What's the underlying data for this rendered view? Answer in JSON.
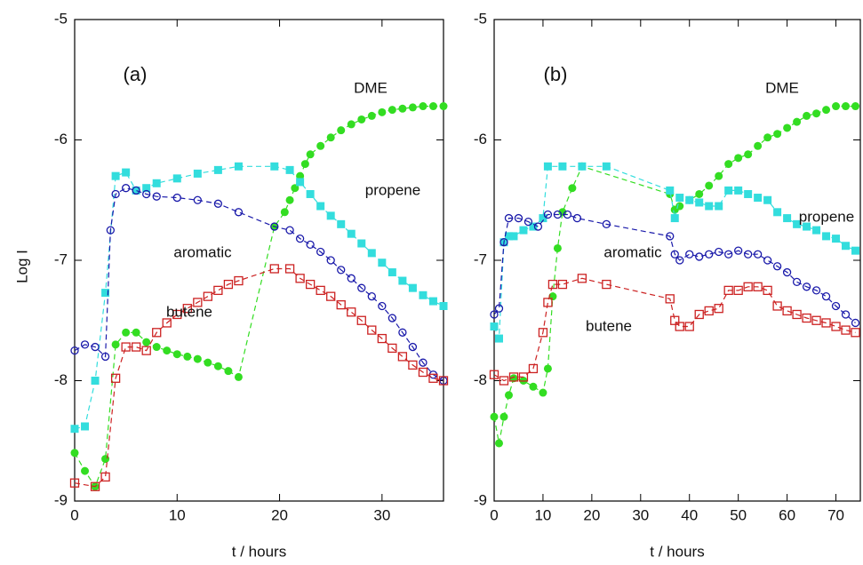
{
  "chart_data": [
    {
      "type": "scatter",
      "ylabel": "Log I",
      "xlabel": "t / hours",
      "annotations": [
        "(a)",
        "DME",
        "propene",
        "aromatic",
        "butene"
      ],
      "xlim": [
        0,
        36
      ],
      "xticks": [
        0,
        10,
        20,
        30
      ],
      "ylim": [
        -9,
        -5
      ],
      "yticks": [
        -9,
        -8,
        -7,
        -6,
        -5
      ],
      "line_style": "dashed",
      "series": [
        {
          "name": "DME",
          "color": "#33dd22",
          "marker": "circle",
          "filled": true,
          "x": [
            0,
            1,
            2,
            3,
            4,
            5,
            6,
            7,
            8,
            9,
            10,
            11,
            12,
            13,
            14,
            15,
            16,
            19.5,
            20.5,
            21,
            21.5,
            22,
            22.5,
            23,
            24,
            25,
            26,
            27,
            28,
            29,
            30,
            31,
            32,
            33,
            34,
            35,
            36
          ],
          "values": [
            -8.6,
            -8.75,
            -8.88,
            -8.65,
            -7.7,
            -7.6,
            -7.6,
            -7.68,
            -7.72,
            -7.75,
            -7.78,
            -7.8,
            -7.82,
            -7.85,
            -7.88,
            -7.92,
            -7.97,
            -6.72,
            -6.6,
            -6.5,
            -6.4,
            -6.3,
            -6.2,
            -6.12,
            -6.05,
            -5.98,
            -5.92,
            -5.87,
            -5.83,
            -5.8,
            -5.77,
            -5.75,
            -5.74,
            -5.73,
            -5.72,
            -5.72,
            -5.72
          ]
        },
        {
          "name": "propene",
          "color": "#33dddd",
          "marker": "square",
          "filled": true,
          "x": [
            0,
            1,
            2,
            3,
            4,
            5,
            6,
            7,
            8,
            10,
            12,
            14,
            16,
            19.5,
            21,
            22,
            23,
            24,
            25,
            26,
            27,
            28,
            29,
            30,
            31,
            32,
            33,
            34,
            35,
            36
          ],
          "values": [
            -8.4,
            -8.38,
            -8.0,
            -7.27,
            -6.3,
            -6.27,
            -6.42,
            -6.4,
            -6.36,
            -6.32,
            -6.28,
            -6.25,
            -6.22,
            -6.22,
            -6.25,
            -6.35,
            -6.45,
            -6.55,
            -6.63,
            -6.7,
            -6.78,
            -6.86,
            -6.94,
            -7.02,
            -7.1,
            -7.17,
            -7.23,
            -7.29,
            -7.34,
            -7.38
          ]
        },
        {
          "name": "aromatic",
          "color": "#1a1aaa",
          "marker": "circle",
          "filled": false,
          "x": [
            0,
            1,
            2,
            3,
            3.5,
            4,
            5,
            6,
            7,
            8,
            10,
            12,
            14,
            16,
            19.5,
            21,
            22,
            23,
            24,
            25,
            26,
            27,
            28,
            29,
            30,
            31,
            32,
            33,
            34,
            35,
            36
          ],
          "values": [
            -7.75,
            -7.7,
            -7.72,
            -7.8,
            -6.75,
            -6.45,
            -6.4,
            -6.42,
            -6.45,
            -6.47,
            -6.48,
            -6.5,
            -6.53,
            -6.6,
            -6.72,
            -6.75,
            -6.82,
            -6.87,
            -6.93,
            -7.0,
            -7.08,
            -7.15,
            -7.23,
            -7.3,
            -7.38,
            -7.48,
            -7.6,
            -7.72,
            -7.85,
            -7.95,
            -8.0
          ]
        },
        {
          "name": "butene",
          "color": "#cc2222",
          "marker": "square",
          "filled": false,
          "x": [
            0,
            2,
            3,
            4,
            5,
            6,
            7,
            8,
            9,
            10,
            11,
            12,
            13,
            14,
            15,
            16,
            19.5,
            21,
            22,
            23,
            24,
            25,
            26,
            27,
            28,
            29,
            30,
            31,
            32,
            33,
            34,
            35,
            36
          ],
          "values": [
            -8.85,
            -8.88,
            -8.8,
            -7.98,
            -7.72,
            -7.72,
            -7.75,
            -7.6,
            -7.52,
            -7.45,
            -7.4,
            -7.35,
            -7.3,
            -7.25,
            -7.2,
            -7.17,
            -7.07,
            -7.07,
            -7.15,
            -7.2,
            -7.25,
            -7.3,
            -7.37,
            -7.43,
            -7.5,
            -7.58,
            -7.65,
            -7.73,
            -7.8,
            -7.87,
            -7.93,
            -7.98,
            -8.0
          ]
        }
      ]
    },
    {
      "type": "scatter",
      "xlabel": "t / hours",
      "annotations": [
        "(b)",
        "DME",
        "propene",
        "aromatic",
        "butene"
      ],
      "xlim": [
        0,
        75
      ],
      "xticks": [
        0,
        10,
        20,
        30,
        40,
        50,
        60,
        70
      ],
      "ylim": [
        -9,
        -5
      ],
      "yticks": [
        -9,
        -8,
        -7,
        -6,
        -5
      ],
      "line_style": "dashed",
      "series": [
        {
          "name": "DME",
          "color": "#33dd22",
          "marker": "circle",
          "filled": true,
          "x": [
            0,
            1,
            2,
            3,
            4,
            6,
            8,
            10,
            11,
            12,
            13,
            14,
            16,
            18,
            36,
            37,
            38,
            40,
            42,
            44,
            46,
            48,
            50,
            52,
            54,
            56,
            58,
            60,
            62,
            64,
            66,
            68,
            70,
            72,
            74
          ],
          "values": [
            -8.3,
            -8.52,
            -8.3,
            -8.12,
            -7.98,
            -8.0,
            -8.05,
            -8.1,
            -7.9,
            -7.3,
            -6.9,
            -6.6,
            -6.4,
            -6.22,
            -6.45,
            -6.58,
            -6.55,
            -6.5,
            -6.45,
            -6.38,
            -6.3,
            -6.2,
            -6.15,
            -6.12,
            -6.05,
            -5.98,
            -5.95,
            -5.9,
            -5.85,
            -5.8,
            -5.78,
            -5.75,
            -5.72,
            -5.72,
            -5.72
          ]
        },
        {
          "name": "propene",
          "color": "#33dddd",
          "marker": "square",
          "filled": true,
          "x": [
            0,
            1,
            2,
            3,
            4,
            6,
            8,
            10,
            11,
            14,
            18,
            23,
            36,
            37,
            38,
            40,
            42,
            44,
            46,
            48,
            50,
            52,
            54,
            56,
            58,
            60,
            62,
            64,
            66,
            68,
            70,
            72,
            74
          ],
          "values": [
            -7.55,
            -7.65,
            -6.85,
            -6.8,
            -6.8,
            -6.75,
            -6.72,
            -6.65,
            -6.22,
            -6.22,
            -6.22,
            -6.22,
            -6.42,
            -6.65,
            -6.48,
            -6.5,
            -6.52,
            -6.55,
            -6.55,
            -6.42,
            -6.42,
            -6.45,
            -6.48,
            -6.5,
            -6.6,
            -6.65,
            -6.7,
            -6.72,
            -6.75,
            -6.8,
            -6.82,
            -6.88,
            -6.92
          ]
        },
        {
          "name": "aromatic",
          "color": "#1a1aaa",
          "marker": "circle",
          "filled": false,
          "x": [
            0,
            1,
            2,
            3,
            5,
            7,
            9,
            11,
            13,
            15,
            17,
            23,
            36,
            37,
            38,
            40,
            42,
            44,
            46,
            48,
            50,
            52,
            54,
            56,
            58,
            60,
            62,
            64,
            66,
            68,
            70,
            72,
            74
          ],
          "values": [
            -7.45,
            -7.4,
            -6.85,
            -6.65,
            -6.65,
            -6.68,
            -6.72,
            -6.62,
            -6.62,
            -6.62,
            -6.65,
            -6.7,
            -6.8,
            -6.95,
            -7.0,
            -6.95,
            -6.97,
            -6.95,
            -6.93,
            -6.95,
            -6.92,
            -6.95,
            -6.95,
            -7.0,
            -7.05,
            -7.1,
            -7.18,
            -7.22,
            -7.25,
            -7.3,
            -7.38,
            -7.45,
            -7.52
          ]
        },
        {
          "name": "butene",
          "color": "#cc2222",
          "marker": "square",
          "filled": false,
          "x": [
            0,
            2,
            4,
            6,
            8,
            10,
            11,
            12,
            14,
            18,
            23,
            36,
            37,
            38,
            40,
            42,
            44,
            46,
            48,
            50,
            52,
            54,
            56,
            58,
            60,
            62,
            64,
            66,
            68,
            70,
            72,
            74
          ],
          "values": [
            -7.95,
            -8.0,
            -7.97,
            -7.97,
            -7.9,
            -7.6,
            -7.35,
            -7.2,
            -7.2,
            -7.15,
            -7.2,
            -7.32,
            -7.5,
            -7.55,
            -7.55,
            -7.45,
            -7.42,
            -7.4,
            -7.25,
            -7.25,
            -7.22,
            -7.22,
            -7.25,
            -7.38,
            -7.42,
            -7.45,
            -7.48,
            -7.5,
            -7.52,
            -7.55,
            -7.58,
            -7.6
          ]
        }
      ]
    }
  ]
}
